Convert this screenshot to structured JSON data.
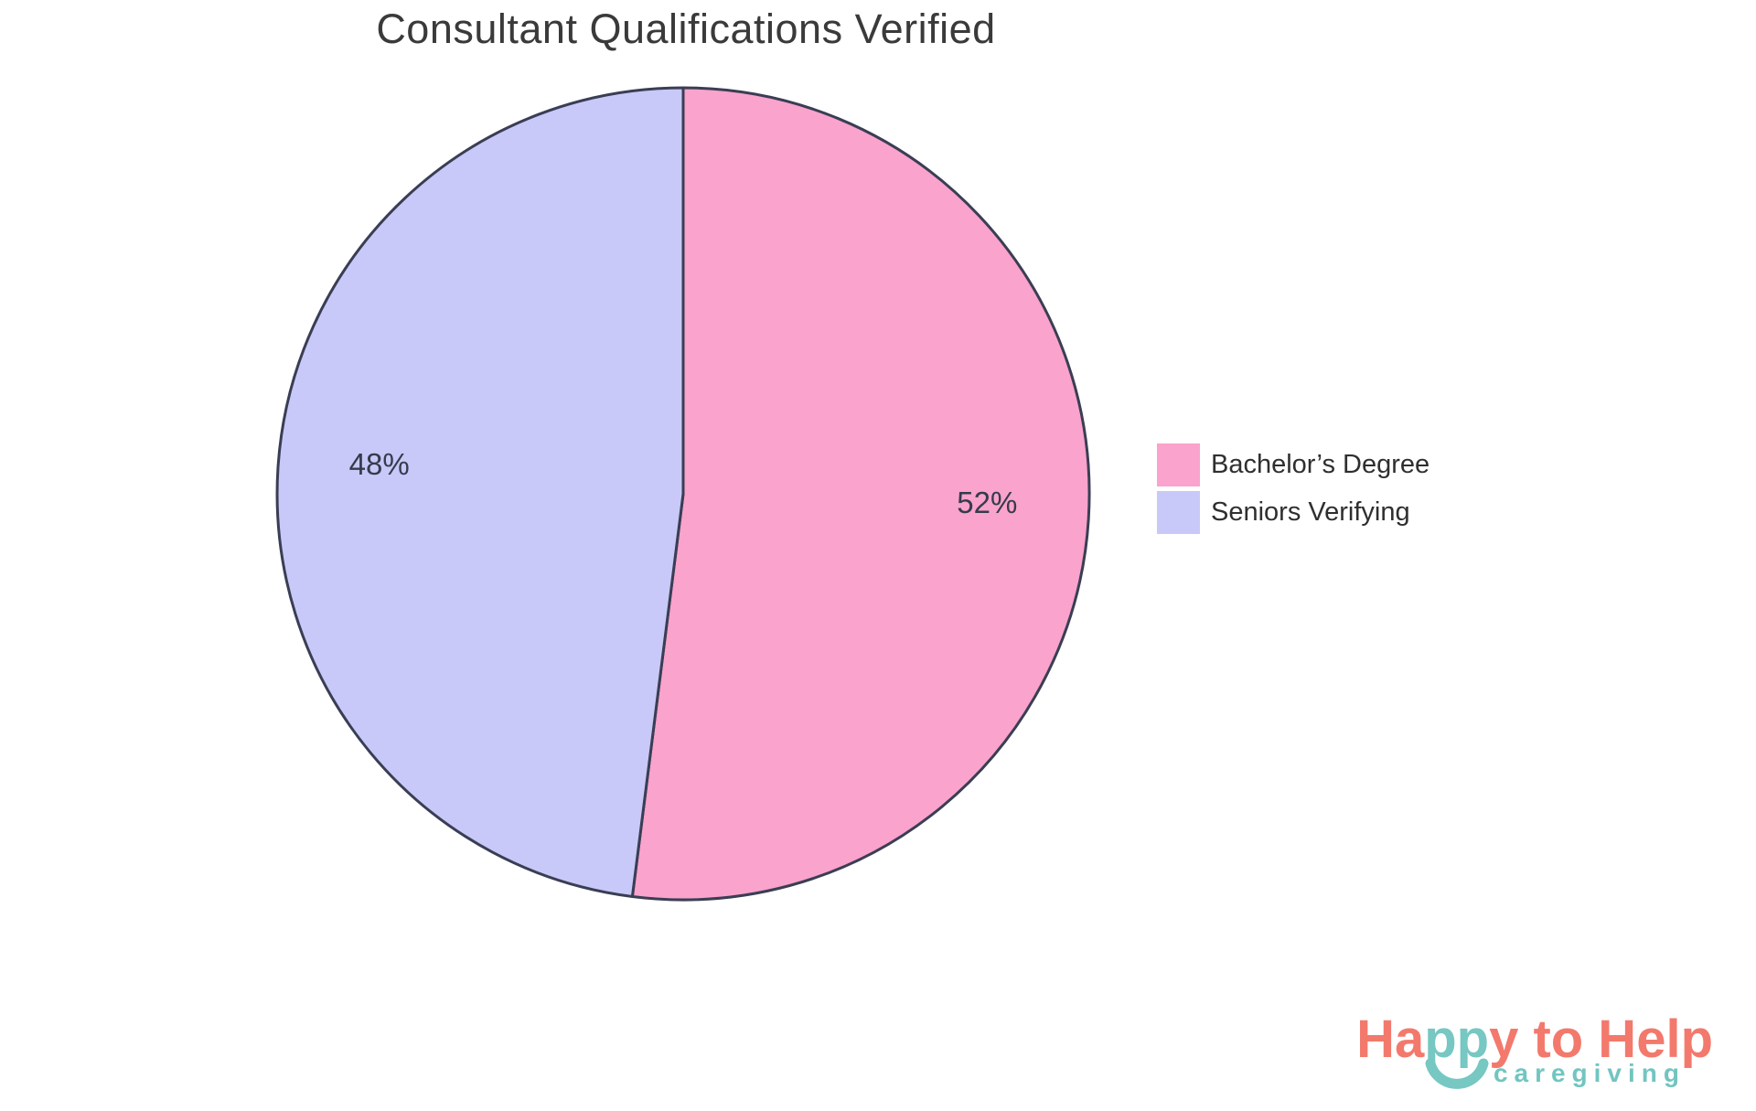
{
  "chart_data": {
    "type": "pie",
    "title": "Consultant Qualifications Verified",
    "direction": "clockwise",
    "start_angle_deg": 0,
    "slices": [
      {
        "label": "Bachelor’s Degree",
        "value": 52,
        "display": "52%",
        "color": "#FAA3CC"
      },
      {
        "label": "Seniors Verifying",
        "value": 48,
        "display": "48%",
        "color": "#C8C9F8"
      }
    ],
    "stroke_color": "#3A3E54",
    "stroke_width": 3,
    "label_color": "#363B4D",
    "label_font_size": 33,
    "label_radius_fraction": 0.75,
    "legend_position": "right",
    "background": "#FFFFFF"
  },
  "logo": {
    "segment_ha": "Ha",
    "segment_pp": "pp",
    "segment_rest": "y to Help",
    "tagline": "caregiving",
    "coral_color": "#F3796D",
    "teal_color": "#77C7C2"
  }
}
